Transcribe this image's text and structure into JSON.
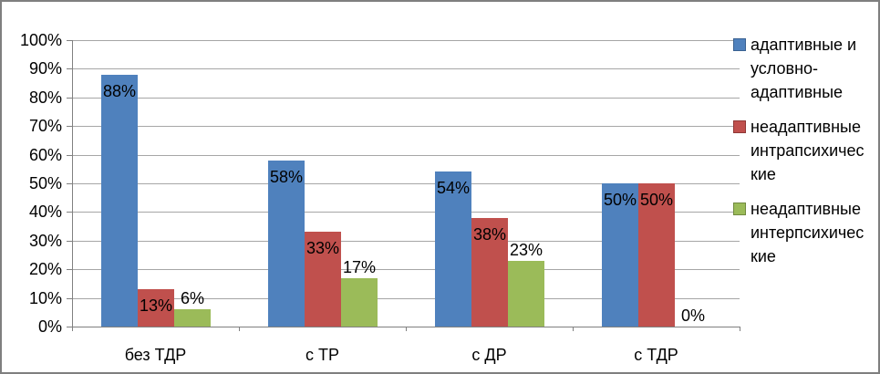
{
  "chart_data": {
    "type": "bar",
    "categories": [
      "без ТДР",
      "с ТР",
      "с ДР",
      "с ТДР"
    ],
    "series": [
      {
        "name": "адаптивные и условно-адаптивные",
        "legend_lines": [
          "адаптивные и",
          "условно-",
          "адаптивные"
        ],
        "color": "#4f81bd",
        "swatch_border": "#3a6191",
        "label_position": "inside-end",
        "values": [
          88,
          58,
          54,
          50
        ]
      },
      {
        "name": "неадаптивные интрапсихические",
        "legend_lines": [
          "неадаптивные",
          "интрапсихичес",
          "кие"
        ],
        "color": "#c0504d",
        "swatch_border": "#8f3836",
        "label_position": "inside-end",
        "values": [
          13,
          33,
          38,
          50
        ]
      },
      {
        "name": "неадаптивные интерпсихические",
        "legend_lines": [
          "неадаптивные",
          "интерпсихичес",
          "кие"
        ],
        "color": "#9bbb59",
        "swatch_border": "#71893f",
        "label_position": "outside-end",
        "values": [
          6,
          17,
          23,
          0
        ]
      }
    ],
    "value_suffix": "%",
    "y_axis": {
      "min": 0,
      "max": 100,
      "step": 10,
      "tick_labels": [
        "0%",
        "10%",
        "20%",
        "30%",
        "40%",
        "50%",
        "60%",
        "70%",
        "80%",
        "90%",
        "100%"
      ]
    },
    "ylim": [
      0,
      100
    ],
    "grid": true,
    "legend_position": "right"
  },
  "colors": {
    "grid": "#a6a6a6",
    "axis": "#808080",
    "text": "#000000",
    "frame_border": "#7f7f7f",
    "background": "#ffffff"
  }
}
